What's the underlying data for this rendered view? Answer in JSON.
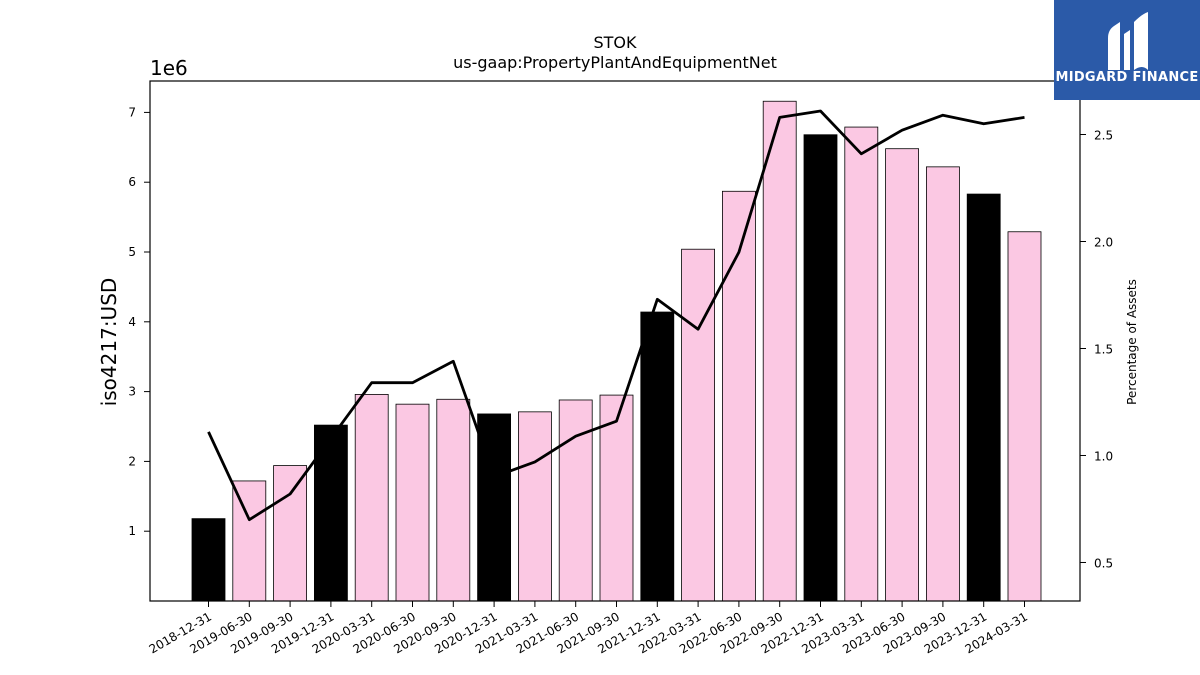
{
  "brand": {
    "name": "MIDGARD FINANCE",
    "color": "#2b5aa8",
    "icon": "midgard-logo-icon"
  },
  "chart_data": {
    "type": "bar",
    "title": "STOK",
    "subtitle": "us-gaap:PropertyPlantAndEquipmentNet",
    "ylabel": "iso4217:USD",
    "y_offset_label": "1e6",
    "y2label": "Percentage of Assets",
    "ylim": [
      0,
      7450000
    ],
    "y2lim": [
      0.32,
      2.75
    ],
    "yticks": [
      1,
      2,
      3,
      4,
      5,
      6,
      7
    ],
    "y2ticks": [
      "0.5",
      "1.0",
      "1.5",
      "2.0",
      "2.5"
    ],
    "grid": false,
    "colors": {
      "quarter_bar": "#fbc8e3",
      "year_end_bar": "#000000",
      "line": "#000000"
    },
    "categories": [
      "2018-12-31",
      "2019-06-30",
      "2019-09-30",
      "2019-12-31",
      "2020-03-31",
      "2020-06-30",
      "2020-09-30",
      "2020-12-31",
      "2021-03-31",
      "2021-06-30",
      "2021-09-30",
      "2021-12-31",
      "2022-03-31",
      "2022-06-30",
      "2022-09-30",
      "2022-12-31",
      "2023-03-31",
      "2023-06-30",
      "2023-09-30",
      "2023-12-31",
      "2024-03-31"
    ],
    "series": [
      {
        "type": "bar",
        "values": [
          1180000,
          1720000,
          1940000,
          2520000,
          2960000,
          2820000,
          2890000,
          2680000,
          2710000,
          2880000,
          2950000,
          4140000,
          5040000,
          5870000,
          7160000,
          6680000,
          6790000,
          6480000,
          6220000,
          5830000,
          5290000
        ],
        "year_end": [
          true,
          false,
          false,
          true,
          false,
          false,
          false,
          true,
          false,
          false,
          false,
          true,
          false,
          false,
          false,
          true,
          false,
          false,
          false,
          true,
          false
        ]
      },
      {
        "type": "line",
        "axis": "right",
        "values": [
          1.11,
          0.7,
          0.82,
          1.08,
          1.34,
          1.34,
          1.44,
          0.9,
          0.97,
          1.09,
          1.16,
          1.73,
          1.59,
          1.95,
          2.58,
          2.61,
          2.41,
          2.52,
          2.59,
          2.55,
          2.58
        ]
      }
    ]
  }
}
